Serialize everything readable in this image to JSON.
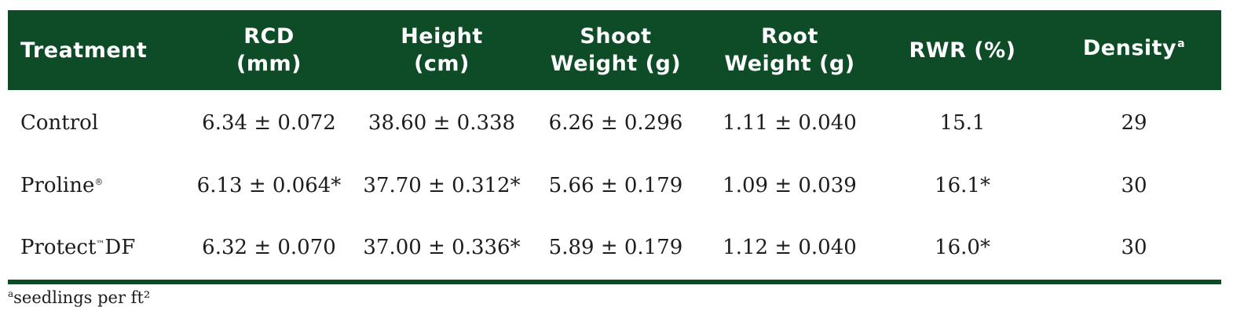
{
  "table": {
    "header_color": "#0d4c27",
    "headers": [
      {
        "line1": "Treatment",
        "line2": "",
        "sup": ""
      },
      {
        "line1": "RCD",
        "line2": "(mm)",
        "sup": ""
      },
      {
        "line1": "Height",
        "line2": "(cm)",
        "sup": ""
      },
      {
        "line1": "Shoot",
        "line2": "Weight (g)",
        "sup": ""
      },
      {
        "line1": "Root",
        "line2": "Weight (g)",
        "sup": ""
      },
      {
        "line1": "RWR (%)",
        "line2": "",
        "sup": ""
      },
      {
        "line1": "Density",
        "line2": "",
        "sup": "a"
      }
    ],
    "rows": [
      {
        "treatment": "Control",
        "treatment_mark": "",
        "treatment_suffix": "",
        "rcd": "6.34 ± 0.072",
        "height": "38.60 ± 0.338",
        "shoot_weight": "6.26 ± 0.296",
        "root_weight": "1.11 ± 0.040",
        "rwr": "15.1",
        "density": "29"
      },
      {
        "treatment": "Proline",
        "treatment_mark": "®",
        "treatment_suffix": "",
        "rcd": "6.13 ± 0.064*",
        "height": "37.70 ± 0.312*",
        "shoot_weight": "5.66 ± 0.179",
        "root_weight": "1.09 ± 0.039",
        "rwr": "16.1*",
        "density": "30"
      },
      {
        "treatment": "Protect",
        "treatment_mark": "™",
        "treatment_suffix": "DF",
        "rcd": "6.32 ± 0.070",
        "height": "37.00 ± 0.336*",
        "shoot_weight": "5.89 ± 0.179",
        "root_weight": "1.12 ± 0.040",
        "rwr": "16.0*",
        "density": "30"
      }
    ]
  },
  "footnote": {
    "sup": "a",
    "text": "seedlings per ft²"
  }
}
